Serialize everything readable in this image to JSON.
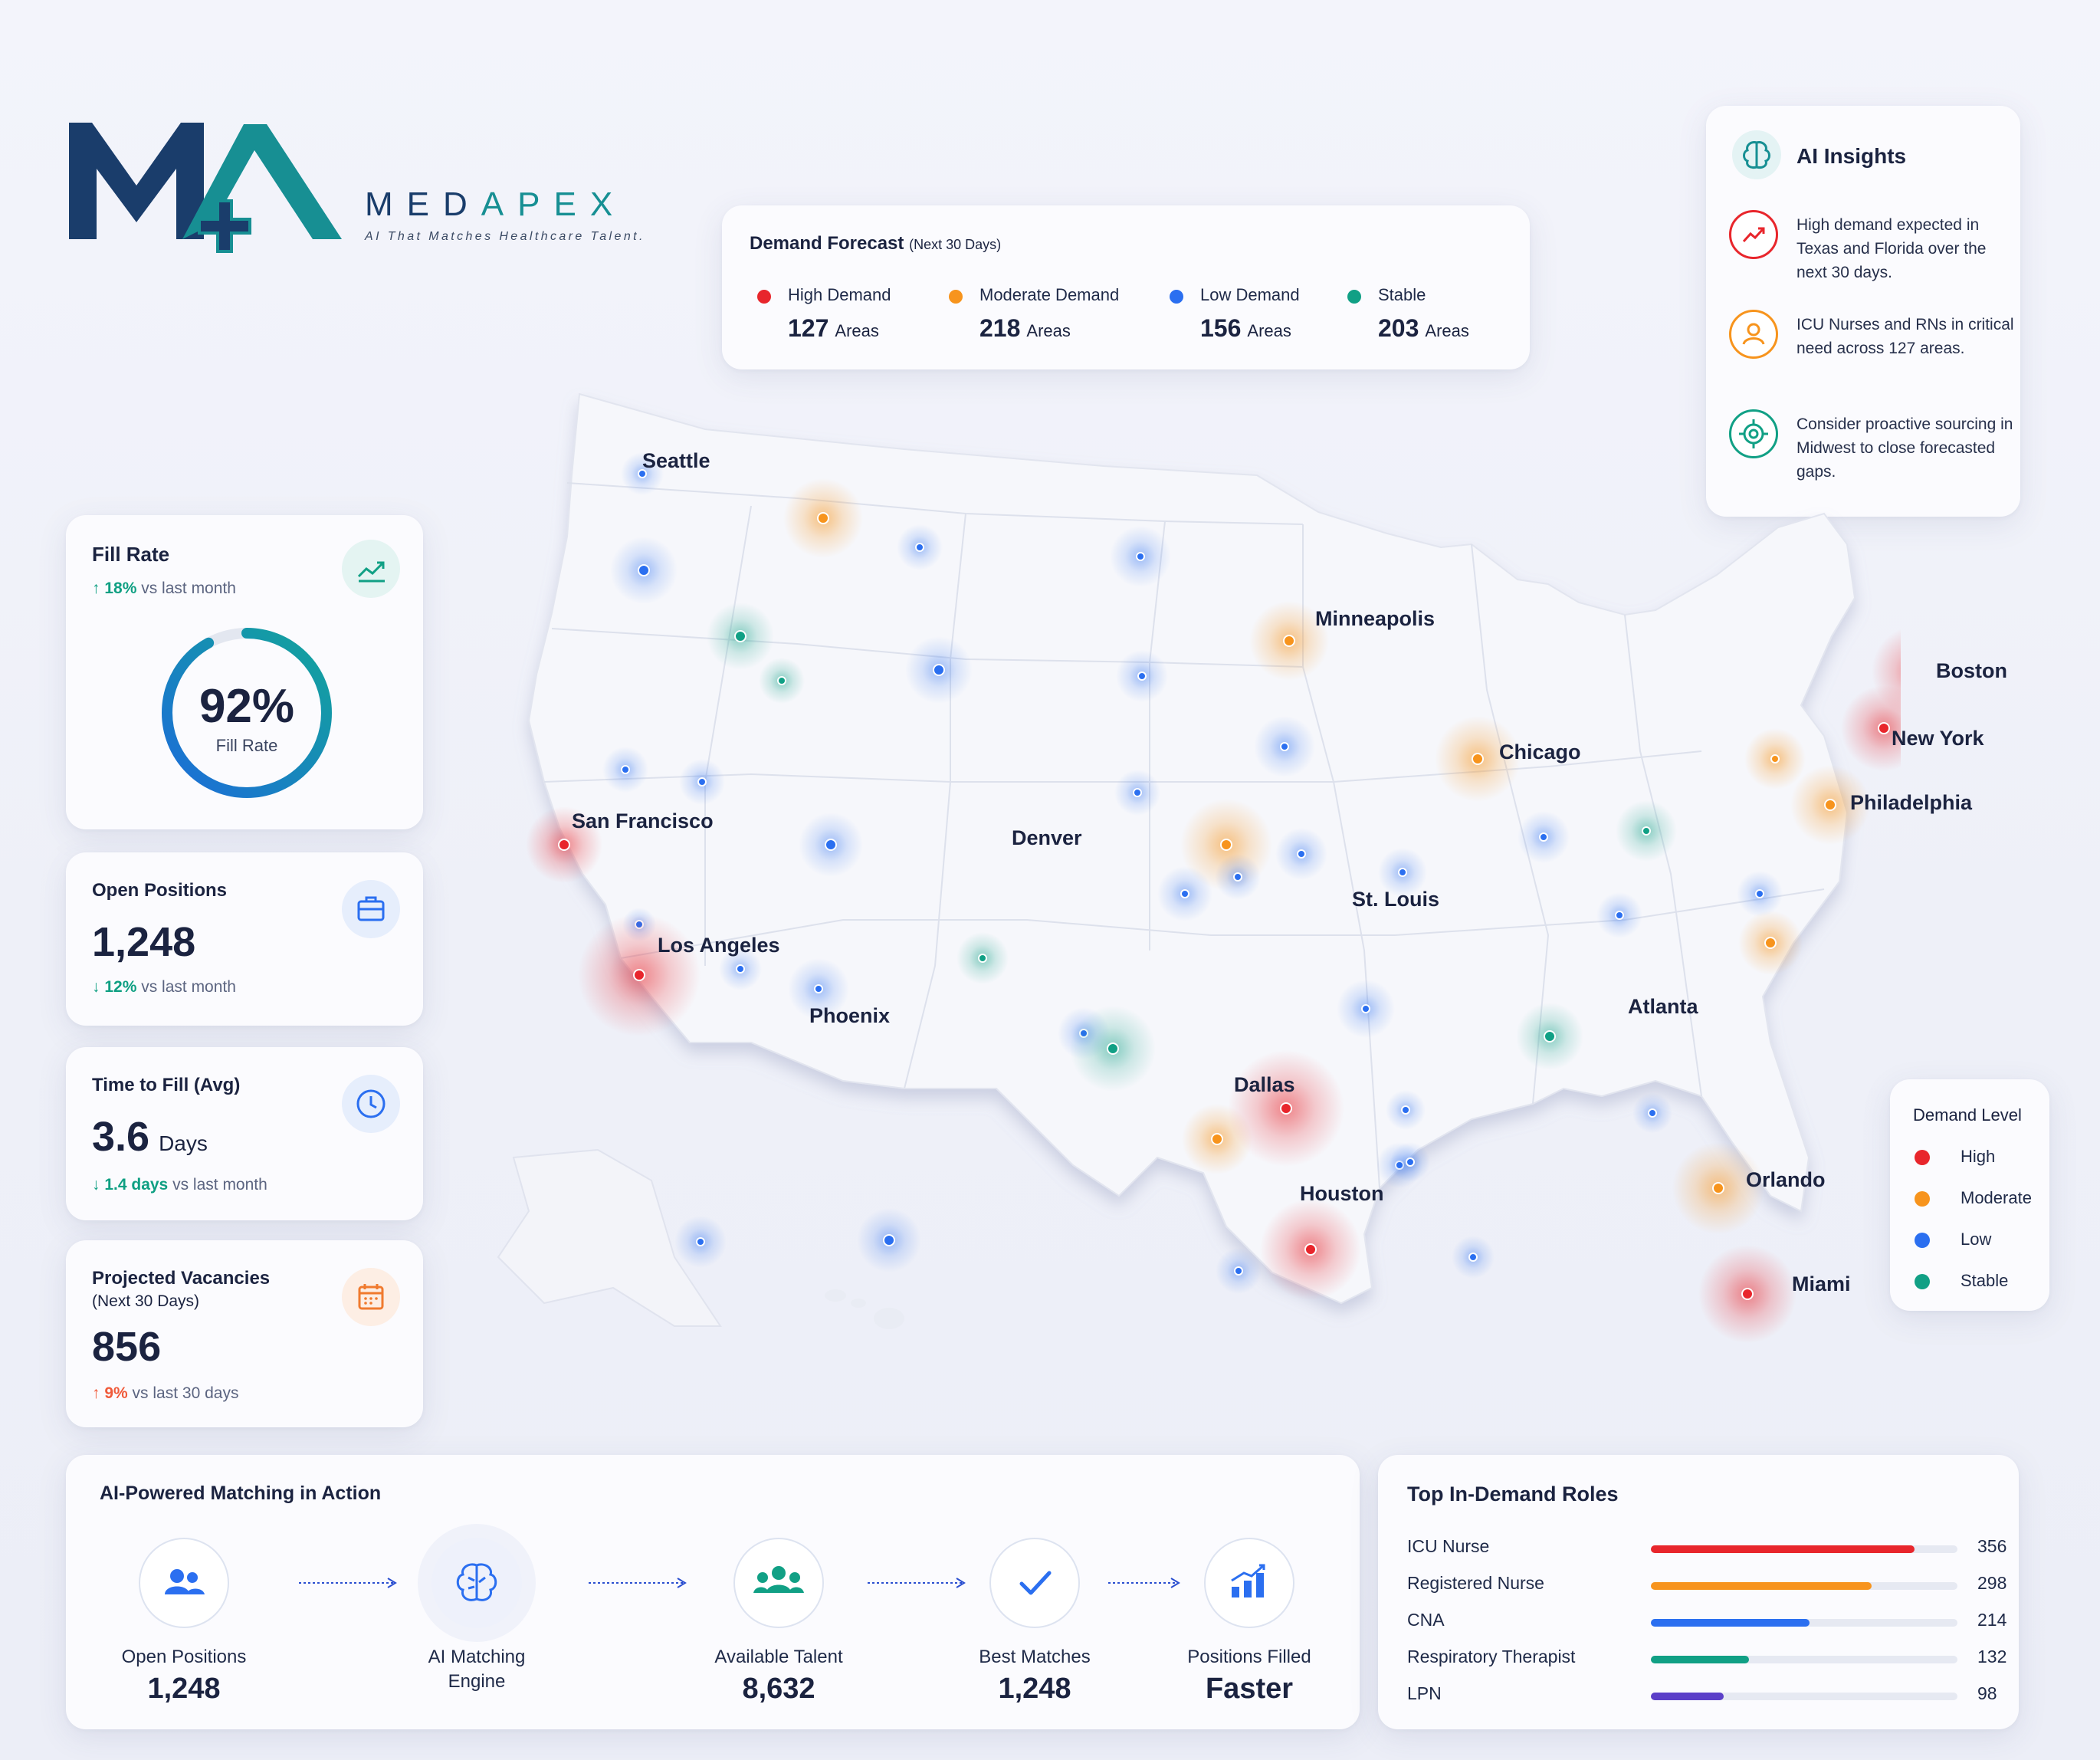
{
  "brand": {
    "name_part1": "MED",
    "name_part2": "APEX",
    "tagline": "AI That Matches Healthcare Talent."
  },
  "forecast": {
    "title": "Demand Forecast",
    "period": "(Next 30 Days)",
    "items": [
      {
        "label": "High Demand",
        "value": "127",
        "unit": "Areas",
        "color": "#e8262c"
      },
      {
        "label": "Moderate Demand",
        "value": "218",
        "unit": "Areas",
        "color": "#f7941d"
      },
      {
        "label": "Low Demand",
        "value": "156",
        "unit": "Areas",
        "color": "#2b6ff0"
      },
      {
        "label": "Stable",
        "value": "203",
        "unit": "Areas",
        "color": "#11a085"
      }
    ]
  },
  "insights": {
    "title": "AI Insights",
    "icon": "brain-icon",
    "items": [
      {
        "text": "High demand expected in Texas and Florida over the next 30 days.",
        "icon": "trend-up-icon",
        "color": "#e8262c"
      },
      {
        "text": "ICU Nurses and RNs in critical need across 127 areas.",
        "icon": "person-icon",
        "color": "#f7941d"
      },
      {
        "text": "Consider proactive sourcing in Midwest to close forecasted gaps.",
        "icon": "target-icon",
        "color": "#11a085"
      }
    ]
  },
  "kpis": {
    "fill_rate": {
      "title": "Fill Rate",
      "change": "18%",
      "change_suffix": "vs last month",
      "value": "92%",
      "value_label": "Fill Rate",
      "percent": 92,
      "icon": "trend-chart-icon"
    },
    "open_positions": {
      "title": "Open Positions",
      "value": "1,248",
      "change": "12%",
      "change_suffix": "vs last month",
      "icon": "briefcase-icon"
    },
    "time_to_fill": {
      "title": "Time to Fill (Avg)",
      "value": "3.6",
      "unit": "Days",
      "change": "1.4 days",
      "change_suffix": "vs last month",
      "icon": "clock-icon"
    },
    "vacancies": {
      "title": "Projected Vacancies",
      "subtitle": "(Next 30 Days)",
      "value": "856",
      "change": "9%",
      "change_suffix": "vs last 30 days",
      "icon": "calendar-icon"
    }
  },
  "map": {
    "cities": [
      "Seattle",
      "Minneapolis",
      "Boston",
      "New York",
      "Chicago",
      "Philadelphia",
      "San Francisco",
      "Denver",
      "St. Louis",
      "Los Angeles",
      "Phoenix",
      "Atlanta",
      "Dallas",
      "Houston",
      "Orlando",
      "Miami"
    ]
  },
  "legend": {
    "title": "Demand Level",
    "items": [
      {
        "label": "High",
        "color": "#e8262c"
      },
      {
        "label": "Moderate",
        "color": "#f7941d"
      },
      {
        "label": "Low",
        "color": "#2b6ff0"
      },
      {
        "label": "Stable",
        "color": "#11a085"
      }
    ]
  },
  "matching": {
    "title": "AI-Powered Matching in Action",
    "steps": [
      {
        "label": "Open Positions",
        "value": "1,248",
        "icon": "people-icon"
      },
      {
        "label": "AI Matching Engine",
        "value": "",
        "icon": "brain-icon"
      },
      {
        "label": "Available Talent",
        "value": "8,632",
        "icon": "group-icon"
      },
      {
        "label": "Best Matches",
        "value": "1,248",
        "icon": "check-icon"
      },
      {
        "label": "Positions Filled",
        "value": "Faster",
        "icon": "bar-chart-icon"
      }
    ]
  },
  "roles": {
    "title": "Top In-Demand Roles",
    "items": [
      {
        "name": "ICU Nurse",
        "value": "356",
        "count": 356,
        "color": "#e8262c"
      },
      {
        "name": "Registered Nurse",
        "value": "298",
        "count": 298,
        "color": "#f7941d"
      },
      {
        "name": "CNA",
        "value": "214",
        "count": 214,
        "color": "#2b6ff0"
      },
      {
        "name": "Respiratory Therapist",
        "value": "132",
        "count": 132,
        "color": "#11a085"
      },
      {
        "name": "LPN",
        "value": "98",
        "count": 98,
        "color": "#5b3fc8"
      }
    ]
  }
}
